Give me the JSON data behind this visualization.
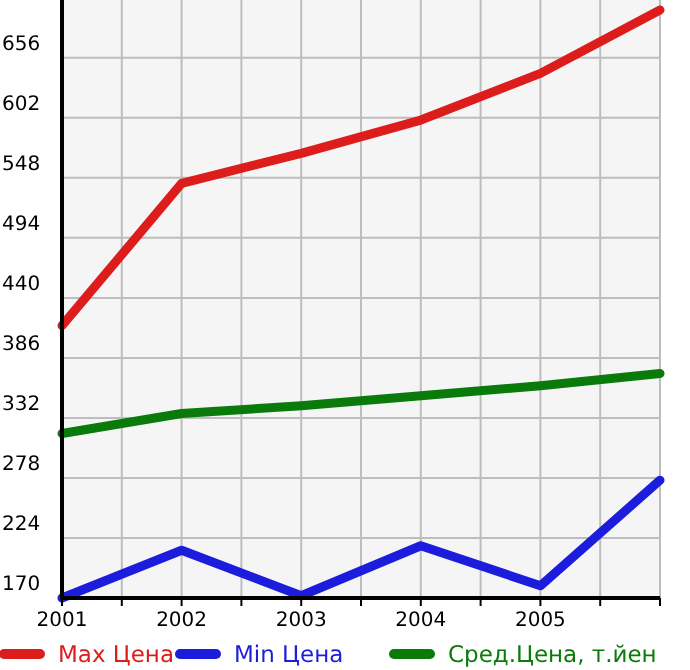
{
  "chart_data": {
    "type": "line",
    "x": [
      2001,
      2002,
      2003,
      2004,
      2005,
      2006
    ],
    "series": [
      {
        "name": "Max Цена",
        "color": "#dd1c1c",
        "values": [
          415,
          543,
          570,
          600,
          642,
          699
        ]
      },
      {
        "name": "Min Цена",
        "color": "#1c1cdd",
        "values": [
          170,
          213,
          172,
          217,
          181,
          276
        ]
      },
      {
        "name": "Сред.Цена, т.йен",
        "color": "#0a7a0a",
        "values": [
          318,
          336,
          343,
          352,
          361,
          372
        ]
      }
    ],
    "xlim": [
      2001,
      2006
    ],
    "xticks": [
      2001,
      {
        "value": 2001.5,
        "label": null
      },
      2002,
      {
        "value": 2002.5,
        "label": null
      },
      2003,
      {
        "value": 2003.5,
        "label": null
      },
      2004,
      {
        "value": 2004.5,
        "label": null
      },
      2005,
      {
        "value": 2005.5,
        "label": null
      },
      {
        "value": 2006,
        "label": null
      }
    ],
    "ylim": [
      170,
      708
    ],
    "yticks": [
      170,
      224,
      278,
      332,
      386,
      440,
      494,
      548,
      602,
      656
    ],
    "grid": true,
    "legend": "bottom",
    "marker": "none",
    "line_style": "solid"
  }
}
